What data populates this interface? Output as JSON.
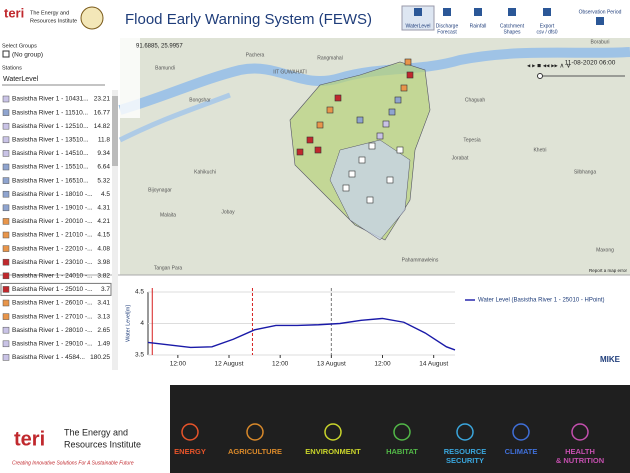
{
  "header": {
    "logo_text": [
      "The Energy and",
      "Resources Institute"
    ],
    "title": "Flood Early Warning System (FEWS)"
  },
  "toolbar": [
    {
      "lines": [
        "WaterLevel"
      ]
    },
    {
      "lines": [
        "Discharge",
        "Forecast"
      ]
    },
    {
      "lines": [
        "Rainfall"
      ]
    },
    {
      "lines": [
        "Catchment",
        "Shapes"
      ]
    },
    {
      "lines": [
        "Export",
        "csv / dfs0"
      ]
    },
    {
      "lines": [
        "Observation Period"
      ]
    }
  ],
  "sidebar": {
    "groups_label": "Select Groups",
    "no_group": "(No group)",
    "stations_label": "Stations",
    "dropdown": "WaterLevel",
    "stations": [
      {
        "name": "Basistha River 1 - 10431...",
        "value": "23.21",
        "color": "#c9c3e6"
      },
      {
        "name": "Basistha River 1 - 11510...",
        "value": "16.77",
        "color": "#8fa4cf"
      },
      {
        "name": "Basistha River 1 - 12510...",
        "value": "14.82",
        "color": "#c9c3e6"
      },
      {
        "name": "Basistha River 1 - 13510...",
        "value": "11.8",
        "color": "#c9c3e6"
      },
      {
        "name": "Basistha River 1 - 14510...",
        "value": "9.34",
        "color": "#c9c3e6"
      },
      {
        "name": "Basistha River 1 - 15510...",
        "value": "6.64",
        "color": "#8fa4cf"
      },
      {
        "name": "Basistha River 1 - 16510...",
        "value": "5.32",
        "color": "#8fa4cf"
      },
      {
        "name": "Basistha River 1 - 18010 -...",
        "value": "4.5",
        "color": "#8fa4cf"
      },
      {
        "name": "Basistha River 1 - 19010 -...",
        "value": "4.31",
        "color": "#8fa4cf"
      },
      {
        "name": "Basistha River 1 - 20010 -...",
        "value": "4.21",
        "color": "#e8954a"
      },
      {
        "name": "Basistha River 1 - 21010 -...",
        "value": "4.15",
        "color": "#e8954a"
      },
      {
        "name": "Basistha River 1 - 22010 -...",
        "value": "4.08",
        "color": "#e8954a"
      },
      {
        "name": "Basistha River 1 - 23010 -...",
        "value": "3.98",
        "color": "#c0282d"
      },
      {
        "name": "Basistha River 1 - 24010 -...",
        "value": "3.82",
        "color": "#c0282d"
      },
      {
        "name": "Basistha River 1 - 25010 -...",
        "value": "3.7",
        "color": "#c0282d"
      },
      {
        "name": "Basistha River 1 - 26010 -...",
        "value": "3.41",
        "color": "#e8954a"
      },
      {
        "name": "Basistha River 1 - 27010 -...",
        "value": "3.13",
        "color": "#e8954a"
      },
      {
        "name": "Basistha River 1 - 28010 -...",
        "value": "2.65",
        "color": "#c9c3e6"
      },
      {
        "name": "Basistha River 1 - 29010 -...",
        "value": "1.49",
        "color": "#c9c3e6"
      },
      {
        "name": "Basistha River 1 - 4584...",
        "value": "180.25",
        "color": "#c9c3e6"
      }
    ],
    "selected": 14
  },
  "map": {
    "coords": "91.6885, 25.9957",
    "date": "11-08-2020 06:00",
    "report": "Report a map error",
    "places": [
      {
        "name": "Pachera",
        "x": 255,
        "y": 55
      },
      {
        "name": "Rangmahal",
        "x": 330,
        "y": 58
      },
      {
        "name": "Bamundi",
        "x": 165,
        "y": 68
      },
      {
        "name": "IIT GUWAHATI",
        "x": 290,
        "y": 72
      },
      {
        "name": "Bongshar",
        "x": 200,
        "y": 100
      },
      {
        "name": "Kahikuchi",
        "x": 205,
        "y": 172
      },
      {
        "name": "Bijoynagar",
        "x": 160,
        "y": 190
      },
      {
        "name": "Malaita",
        "x": 168,
        "y": 215
      },
      {
        "name": "Jobay",
        "x": 228,
        "y": 212
      },
      {
        "name": "Tangan Para",
        "x": 168,
        "y": 268
      },
      {
        "name": "Chaguah",
        "x": 475,
        "y": 100
      },
      {
        "name": "Tepesia",
        "x": 472,
        "y": 140
      },
      {
        "name": "Jorabat",
        "x": 460,
        "y": 158
      },
      {
        "name": "Khetri",
        "x": 540,
        "y": 150
      },
      {
        "name": "Silbhanga",
        "x": 585,
        "y": 172
      },
      {
        "name": "Boraburi",
        "x": 600,
        "y": 42
      },
      {
        "name": "Pahammawleins",
        "x": 420,
        "y": 260
      },
      {
        "name": "Maxong",
        "x": 605,
        "y": 250
      }
    ]
  },
  "chart_data": {
    "type": "line",
    "y_label": "Water Level[m]",
    "x": [
      5,
      10,
      15,
      20,
      25,
      30,
      35,
      40,
      45,
      50,
      55,
      60,
      65,
      70,
      75,
      77
    ],
    "series": [
      {
        "name": "Water Level (Basistha River 1 - 25010 - HPoint)",
        "color": "#1a1aa8",
        "values": [
          3.7,
          3.66,
          3.62,
          3.63,
          3.75,
          3.9,
          3.97,
          3.97,
          3.98,
          4.0,
          4.05,
          4.08,
          4.02,
          3.85,
          3.63,
          3.58
        ]
      }
    ],
    "xlim": [
      5,
      77
    ],
    "ylim": [
      3.5,
      4.5
    ],
    "yticks": [
      3.5,
      4,
      4.5
    ],
    "xticks": [
      {
        "value": 12,
        "label": "12:00"
      },
      {
        "value": 24,
        "label": "12 August"
      },
      {
        "value": 36,
        "label": "12:00"
      },
      {
        "value": 48,
        "label": "13 August"
      },
      {
        "value": 60,
        "label": "12:00"
      },
      {
        "value": 72,
        "label": "14 August"
      }
    ],
    "vlines": [
      {
        "x": 6,
        "color": "#d62020",
        "dash": false
      },
      {
        "x": 29.5,
        "color": "#d62020",
        "dash": true
      },
      {
        "x": 48,
        "color": "#777",
        "dash": true
      }
    ],
    "logo": "MIKE"
  },
  "footer": {
    "org": [
      "The Energy and",
      "Resources Institute"
    ],
    "tagline": "Creating Innovative Solutions For A Sustainable Future",
    "themes": [
      {
        "lines": [
          "ENERGY"
        ],
        "color": "#e8542a"
      },
      {
        "lines": [
          "AGRICULTURE"
        ],
        "color": "#d9892a"
      },
      {
        "lines": [
          "ENVIRONMENT"
        ],
        "color": "#c9d52b"
      },
      {
        "lines": [
          "HABITAT"
        ],
        "color": "#52b848"
      },
      {
        "lines": [
          "RESOURCE",
          "SECURITY"
        ],
        "color": "#3aa6dd"
      },
      {
        "lines": [
          "CLIMATE"
        ],
        "color": "#3f6fd8"
      },
      {
        "lines": [
          "HEALTH",
          "& NUTRITION"
        ],
        "color": "#c44fae"
      }
    ]
  }
}
